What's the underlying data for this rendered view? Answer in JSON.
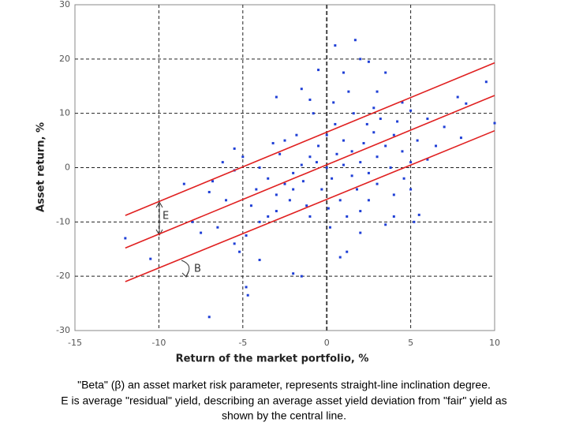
{
  "chart_data": {
    "type": "scatter",
    "xlabel": "Return of the market portfolio, %",
    "ylabel": "Asset return, %",
    "xlim": [
      -15,
      10
    ],
    "ylim": [
      -30,
      30
    ],
    "xticks": [
      -15,
      -10,
      -5,
      0,
      5,
      10
    ],
    "yticks": [
      30,
      20,
      10,
      0,
      -10,
      -20,
      -30
    ],
    "grid": true,
    "series": [
      {
        "color": "#1f3fd6",
        "x": [
          -12,
          -10.5,
          -7,
          -4.8,
          -4.7,
          0.5,
          1.7,
          8.3,
          9.5,
          10,
          5.5,
          5.2,
          -8.5,
          -7,
          -6.8,
          -6.5,
          -7.5,
          -8,
          -5.5,
          -5.2,
          -4.8,
          -4,
          -2,
          -1.5,
          0.8,
          1.2,
          2,
          3.5,
          4,
          -3,
          -1.5,
          -0.5,
          1,
          2,
          2.5,
          3.5,
          3,
          4.5,
          5,
          6,
          7,
          7.8,
          8,
          6.5,
          6,
          -5,
          -5.5,
          -6,
          -4.5,
          -3.5,
          -3,
          -2.5,
          -2,
          -1.5,
          -1,
          -0.5,
          0,
          0.5,
          1,
          1.5,
          2,
          2.5,
          3,
          3.5,
          4,
          4.5,
          5,
          0,
          0.3,
          -0.3,
          0.8,
          -1.2,
          1.8,
          2.5,
          3,
          -2.8,
          -3.5,
          -4,
          -4.2,
          -2.2,
          -1,
          0.2,
          1.2,
          -0.8,
          0.4,
          1.6,
          2.4,
          3.2,
          4.2,
          -1.8,
          -2.5,
          -3.2,
          1,
          1.5,
          2.2,
          2.8,
          3.8,
          4.6,
          5.4,
          -0.6,
          0.6,
          -1.4,
          -2,
          0.1,
          2,
          -3,
          -4,
          4,
          5,
          -5.5,
          -6.2,
          2.8,
          1.3,
          -1
        ],
        "values": [
          -13,
          -16.8,
          -27.5,
          -22,
          -23.5,
          22.5,
          23.5,
          11.8,
          15.8,
          8.2,
          -8.7,
          -10,
          -3,
          -4.5,
          -2.5,
          -11,
          -12,
          -10,
          -14,
          -15.5,
          -12.5,
          -17,
          -19.5,
          -20,
          -16.5,
          -15.5,
          -12,
          -10.5,
          -9,
          13,
          14.5,
          18,
          17.5,
          20,
          19.5,
          17.5,
          14,
          12,
          10.5,
          9,
          7.5,
          13,
          5.5,
          4,
          1.5,
          2,
          -0.5,
          -6,
          -7,
          -9,
          -5,
          -3,
          -1,
          0.5,
          2,
          4,
          6,
          8,
          5,
          3,
          1,
          -1,
          2,
          4,
          6,
          3,
          1,
          0,
          -2,
          -4,
          -6,
          -7,
          -4,
          -6,
          -3,
          2.5,
          -2,
          0,
          -4,
          -6,
          -9,
          -11,
          -9,
          10,
          12,
          10,
          8,
          9,
          8.5,
          6,
          5,
          4.5,
          0.5,
          -1.5,
          4.5,
          6.5,
          0,
          -2,
          5,
          1,
          2.5,
          -2.5,
          -4,
          -7.5,
          -8,
          -8,
          -10,
          -5,
          -4,
          3.5,
          1,
          11,
          14,
          12.5
        ]
      }
    ],
    "lines": [
      {
        "color": "#e02020",
        "x": [
          -12,
          10
        ],
        "values": [
          -8.8,
          19.3
        ]
      },
      {
        "color": "#e02020",
        "x": [
          -12,
          10
        ],
        "values": [
          -14.8,
          13.3
        ]
      },
      {
        "color": "#e02020",
        "x": [
          -12,
          10
        ],
        "values": [
          -21,
          6.8
        ]
      }
    ],
    "annotations": [
      "E",
      "B"
    ],
    "caption": [
      "\"Beta\" (β) an asset market risk parameter, represents straight-line inclination degree.",
      "E is average \"residual\" yield, describing an average asset yield deviation from \"fair\" yield as",
      "shown by the central line."
    ]
  }
}
